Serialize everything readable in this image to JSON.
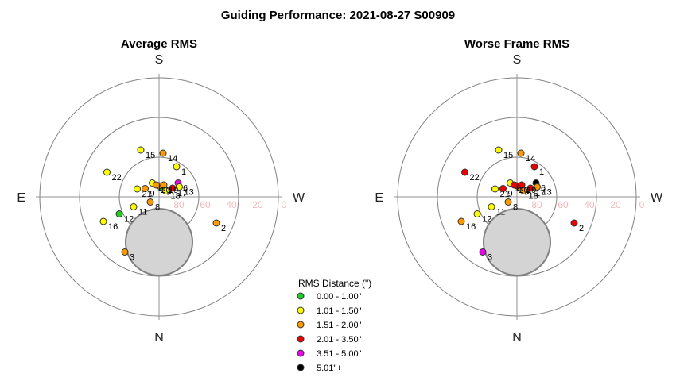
{
  "title": "Guiding Performance: 2021-08-27  S00909",
  "chart_data": [
    {
      "type": "scatter",
      "projection": "polar-altaz",
      "title": "Average RMS",
      "directions": {
        "top": "S",
        "bottom": "N",
        "left": "E",
        "right": "W"
      },
      "altitude_ticks": [
        "80",
        "60",
        "40",
        "20",
        "0"
      ],
      "points": [
        {
          "label": "1",
          "x": 0.44,
          "y": -0.76,
          "rms_class": 1
        },
        {
          "label": "2",
          "x": 1.44,
          "y": 0.66,
          "rms_class": 2
        },
        {
          "label": "3",
          "x": -0.86,
          "y": 1.39,
          "rms_class": 2
        },
        {
          "label": "4",
          "x": 0.08,
          "y": -0.27,
          "rms_class": 1
        },
        {
          "label": "5",
          "x": 0.05,
          "y": -0.25,
          "rms_class": 0
        },
        {
          "label": "6",
          "x": 0.48,
          "y": -0.35,
          "rms_class": 4
        },
        {
          "label": "7",
          "x": 0.0,
          "y": -0.28,
          "rms_class": 2
        },
        {
          "label": "8",
          "x": -0.22,
          "y": 0.13,
          "rms_class": 2
        },
        {
          "label": "9",
          "x": -0.35,
          "y": -0.21,
          "rms_class": 2
        },
        {
          "label": "10",
          "x": -0.17,
          "y": -0.35,
          "rms_class": 1
        },
        {
          "label": "11",
          "x": -0.64,
          "y": 0.25,
          "rms_class": 1
        },
        {
          "label": "12",
          "x": -1.0,
          "y": 0.43,
          "rms_class": 0
        },
        {
          "label": "13",
          "x": 0.51,
          "y": -0.25,
          "rms_class": 1
        },
        {
          "label": "14",
          "x": 0.1,
          "y": -1.1,
          "rms_class": 2
        },
        {
          "label": "15",
          "x": -0.46,
          "y": -1.18,
          "rms_class": 1
        },
        {
          "label": "16",
          "x": -1.4,
          "y": 0.62,
          "rms_class": 1
        },
        {
          "label": "17",
          "x": 0.34,
          "y": -0.22,
          "rms_class": 3
        },
        {
          "label": "18",
          "x": 0.17,
          "y": -0.15,
          "rms_class": 1
        },
        {
          "label": "19",
          "x": 0.12,
          "y": -0.3,
          "rms_class": 2
        },
        {
          "label": "20",
          "x": -0.07,
          "y": -0.3,
          "rms_class": 2
        },
        {
          "label": "21",
          "x": -0.55,
          "y": -0.2,
          "rms_class": 1
        },
        {
          "label": "22",
          "x": -1.31,
          "y": -0.62,
          "rms_class": 1
        }
      ]
    },
    {
      "type": "scatter",
      "projection": "polar-altaz",
      "title": "Worse Frame RMS",
      "directions": {
        "top": "S",
        "bottom": "N",
        "left": "E",
        "right": "W"
      },
      "altitude_ticks": [
        "80",
        "60",
        "40",
        "20",
        "0"
      ],
      "points": [
        {
          "label": "1",
          "x": 0.44,
          "y": -0.76,
          "rms_class": 3
        },
        {
          "label": "2",
          "x": 1.44,
          "y": 0.66,
          "rms_class": 3
        },
        {
          "label": "3",
          "x": -0.86,
          "y": 1.39,
          "rms_class": 4
        },
        {
          "label": "4",
          "x": 0.08,
          "y": -0.27,
          "rms_class": 3
        },
        {
          "label": "5",
          "x": 0.05,
          "y": -0.25,
          "rms_class": 2
        },
        {
          "label": "6",
          "x": 0.48,
          "y": -0.35,
          "rms_class": 5
        },
        {
          "label": "7",
          "x": 0.0,
          "y": -0.28,
          "rms_class": 3
        },
        {
          "label": "8",
          "x": -0.22,
          "y": 0.13,
          "rms_class": 2
        },
        {
          "label": "9",
          "x": -0.35,
          "y": -0.21,
          "rms_class": 3
        },
        {
          "label": "10",
          "x": -0.17,
          "y": -0.35,
          "rms_class": 1
        },
        {
          "label": "11",
          "x": -0.64,
          "y": 0.25,
          "rms_class": 1
        },
        {
          "label": "12",
          "x": -1.0,
          "y": 0.43,
          "rms_class": 1
        },
        {
          "label": "13",
          "x": 0.51,
          "y": -0.25,
          "rms_class": 2
        },
        {
          "label": "14",
          "x": 0.1,
          "y": -1.1,
          "rms_class": 2
        },
        {
          "label": "15",
          "x": -0.46,
          "y": -1.18,
          "rms_class": 1
        },
        {
          "label": "16",
          "x": -1.4,
          "y": 0.62,
          "rms_class": 2
        },
        {
          "label": "17",
          "x": 0.34,
          "y": -0.22,
          "rms_class": 3
        },
        {
          "label": "18",
          "x": 0.17,
          "y": -0.15,
          "rms_class": 2
        },
        {
          "label": "19",
          "x": 0.12,
          "y": -0.3,
          "rms_class": 3
        },
        {
          "label": "20",
          "x": -0.07,
          "y": -0.3,
          "rms_class": 3
        },
        {
          "label": "21",
          "x": -0.55,
          "y": -0.2,
          "rms_class": 1
        },
        {
          "label": "22",
          "x": -1.31,
          "y": -0.62,
          "rms_class": 3
        }
      ]
    }
  ],
  "legend": {
    "title": "RMS Distance (\")",
    "items": [
      {
        "label": "0.00 - 1.00\"",
        "color": "#22cc22"
      },
      {
        "label": "1.01 - 1.50\"",
        "color": "#ffff00"
      },
      {
        "label": "1.51 - 2.00\"",
        "color": "#ff9900"
      },
      {
        "label": "2.01 - 3.50\"",
        "color": "#ee0000"
      },
      {
        "label": "3.51 - 5.00\"",
        "color": "#ee00ee"
      },
      {
        "label": "5.01\"+",
        "color": "#000000"
      }
    ]
  }
}
